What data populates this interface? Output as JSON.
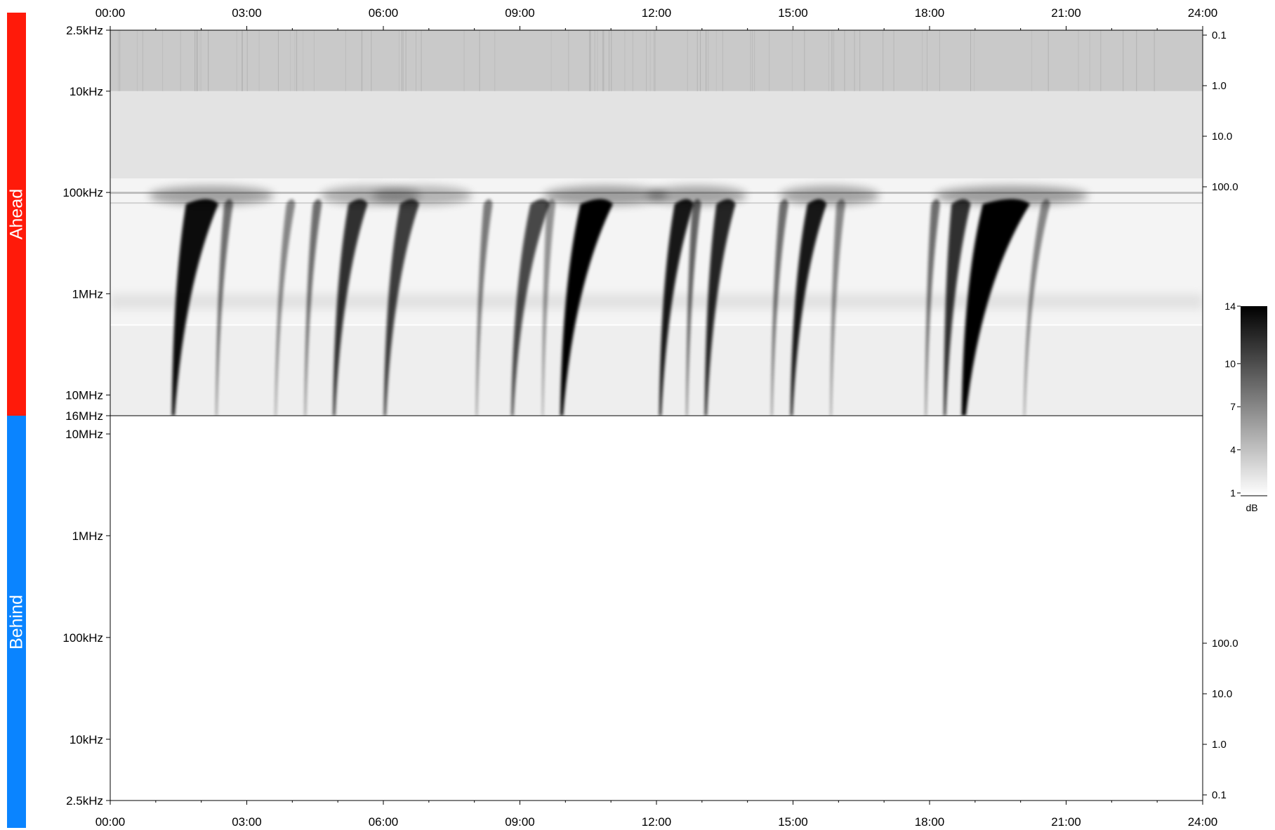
{
  "panels": {
    "ahead": {
      "label": "Ahead",
      "color": "#ff1a0a"
    },
    "behind": {
      "label": "Behind",
      "color": "#0a84ff"
    }
  },
  "colorbar": {
    "ticks": [
      "14",
      "10",
      "7",
      "4",
      "1"
    ],
    "unit": "dB"
  },
  "chart_data": [
    {
      "type": "heatmap",
      "panel": "Ahead",
      "x": {
        "range": [
          "00:00",
          "24:00"
        ],
        "ticks": [
          "00:00",
          "03:00",
          "06:00",
          "09:00",
          "12:00",
          "15:00",
          "18:00",
          "21:00",
          "24:00"
        ]
      },
      "y_left": {
        "scale": "log",
        "direction": "top-to-bottom",
        "ticks": [
          "2.5kHz",
          "10kHz",
          "100kHz",
          "1MHz",
          "10MHz",
          "16MHz"
        ]
      },
      "y_right": {
        "ticks": [
          "0.1",
          "1.0",
          "10.0",
          "100.0"
        ]
      },
      "colorbar": {
        "ticks": [
          "14",
          "10",
          "7",
          "4",
          "1"
        ],
        "unit": "dB",
        "colormap": "white-to-black"
      },
      "events": [
        {
          "onset": "01:23",
          "head": "01:50",
          "intensity": 0.95,
          "width": "wide",
          "halo": true
        },
        {
          "onset": "02:20",
          "head": "02:33",
          "intensity": 0.55,
          "width": "thin",
          "halo": false
        },
        {
          "onset": "03:38",
          "head": "03:55",
          "intensity": 0.45,
          "width": "thin",
          "halo": false
        },
        {
          "onset": "04:17",
          "head": "04:30",
          "intensity": 0.55,
          "width": "thin",
          "halo": false
        },
        {
          "onset": "04:55",
          "head": "05:20",
          "intensity": 0.8,
          "width": "medium",
          "halo": true
        },
        {
          "onset": "06:02",
          "head": "06:28",
          "intensity": 0.75,
          "width": "medium",
          "halo": true
        },
        {
          "onset": "08:03",
          "head": "08:15",
          "intensity": 0.5,
          "width": "thin",
          "halo": false
        },
        {
          "onset": "08:50",
          "head": "09:20",
          "intensity": 0.7,
          "width": "medium",
          "halo": false
        },
        {
          "onset": "09:30",
          "head": "09:38",
          "intensity": 0.4,
          "width": "thin",
          "halo": false
        },
        {
          "onset": "09:55",
          "head": "10:30",
          "intensity": 1.0,
          "width": "wide",
          "halo": true
        },
        {
          "onset": "12:05",
          "head": "12:30",
          "intensity": 0.9,
          "width": "medium",
          "halo": true
        },
        {
          "onset": "12:40",
          "head": "12:50",
          "intensity": 0.6,
          "width": "thin",
          "halo": false
        },
        {
          "onset": "13:05",
          "head": "13:25",
          "intensity": 0.85,
          "width": "medium",
          "halo": false
        },
        {
          "onset": "14:32",
          "head": "14:45",
          "intensity": 0.55,
          "width": "thin",
          "halo": false
        },
        {
          "onset": "14:58",
          "head": "15:25",
          "intensity": 0.9,
          "width": "medium",
          "halo": true
        },
        {
          "onset": "15:50",
          "head": "16:00",
          "intensity": 0.45,
          "width": "thin",
          "halo": false
        },
        {
          "onset": "17:55",
          "head": "18:05",
          "intensity": 0.55,
          "width": "thin",
          "halo": false
        },
        {
          "onset": "18:20",
          "head": "18:35",
          "intensity": 0.8,
          "width": "medium",
          "halo": false
        },
        {
          "onset": "18:45",
          "head": "19:25",
          "intensity": 1.0,
          "width": "extra-wide",
          "halo": true
        },
        {
          "onset": "20:05",
          "head": "20:30",
          "intensity": 0.45,
          "width": "thin",
          "halo": false
        }
      ]
    },
    {
      "type": "heatmap",
      "panel": "Behind",
      "x": {
        "range": [
          "00:00",
          "24:00"
        ],
        "ticks": [
          "00:00",
          "03:00",
          "06:00",
          "09:00",
          "12:00",
          "15:00",
          "18:00",
          "21:00",
          "24:00"
        ]
      },
      "y_left": {
        "scale": "log",
        "direction": "top-to-bottom",
        "ticks": [
          "10MHz",
          "1MHz",
          "100kHz",
          "10kHz",
          "2.5kHz"
        ]
      },
      "y_right": {
        "ticks": [
          "100.0",
          "10.0",
          "1.0",
          "0.1"
        ]
      },
      "events": []
    }
  ]
}
